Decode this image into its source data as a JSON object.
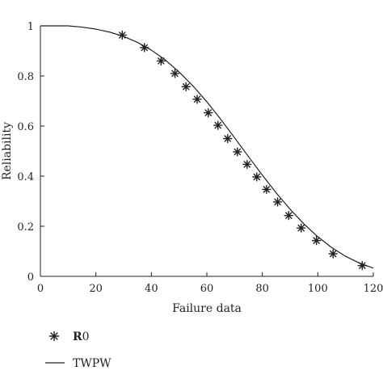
{
  "chart_data": {
    "type": "line",
    "title": "",
    "xlabel": "Failure data",
    "ylabel": "Reliability",
    "xlim": [
      0,
      120
    ],
    "ylim": [
      0,
      1
    ],
    "xticks": [
      "0",
      "20",
      "40",
      "60",
      "80",
      "100",
      "120"
    ],
    "yticks": [
      "0",
      "0.2",
      "0.4",
      "0.6",
      "0.8",
      "1"
    ],
    "grid": false,
    "legend_position": "bottom-left",
    "series": [
      {
        "name": "R0",
        "style": "markers",
        "marker": "asterisk",
        "color": "#231f20",
        "x": [
          29.5,
          37.5,
          43.5,
          48.5,
          52.5,
          56.5,
          60.5,
          64,
          67.5,
          71,
          74.5,
          78,
          81.5,
          85.5,
          89.5,
          94,
          99.5,
          105.5,
          116
        ],
        "y": [
          0.963,
          0.913,
          0.86,
          0.81,
          0.757,
          0.707,
          0.653,
          0.603,
          0.55,
          0.497,
          0.447,
          0.397,
          0.347,
          0.297,
          0.243,
          0.193,
          0.143,
          0.09,
          0.043
        ]
      },
      {
        "name": "TWPW",
        "style": "line",
        "color": "#231f20",
        "x": [
          0,
          5,
          10,
          15,
          20,
          25,
          30,
          35,
          40,
          45,
          50,
          55,
          60,
          65,
          70,
          75,
          80,
          85,
          90,
          95,
          100,
          105,
          110,
          115,
          120
        ],
        "y": [
          1.0,
          1.0,
          1.0,
          0.995,
          0.987,
          0.975,
          0.958,
          0.934,
          0.903,
          0.864,
          0.816,
          0.76,
          0.697,
          0.627,
          0.553,
          0.478,
          0.404,
          0.333,
          0.268,
          0.209,
          0.158,
          0.115,
          0.08,
          0.053,
          0.033
        ]
      }
    ]
  },
  "legend": {
    "items": [
      {
        "prefix": "R",
        "suffix": "0",
        "marker": "asterisk"
      },
      {
        "prefix": "TWPW",
        "suffix": "",
        "marker": "line"
      }
    ]
  }
}
